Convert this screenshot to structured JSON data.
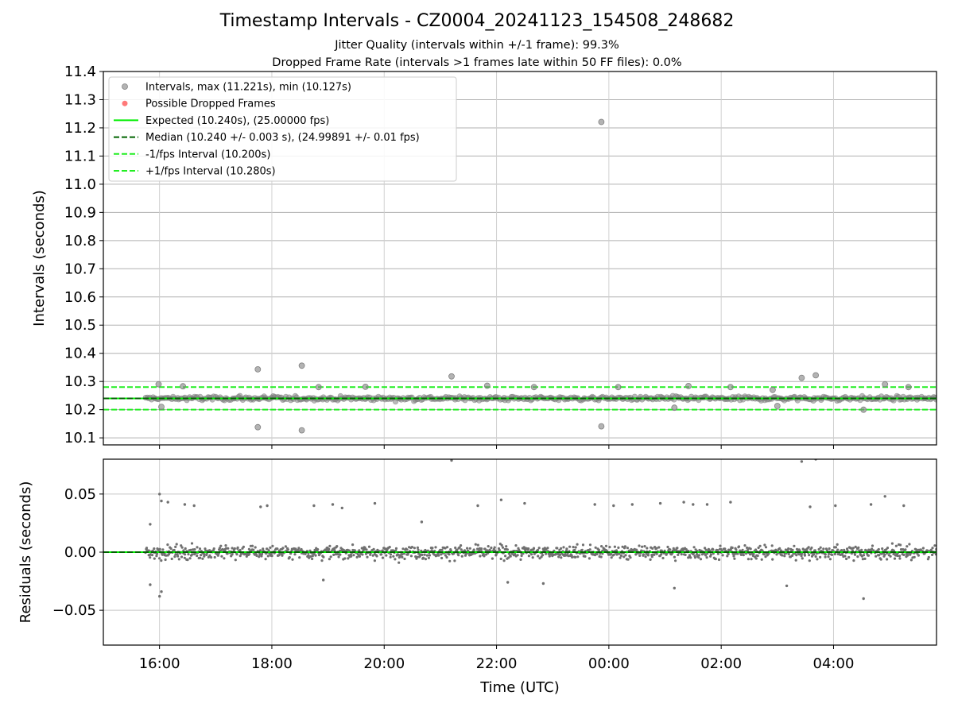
{
  "figure": {
    "title": "Timestamp Intervals - CZ0004_20241123_154508_248682",
    "subtitle_1": "Jitter Quality (intervals within +/-1 frame): 99.3%",
    "subtitle_2": "Dropped Frame Rate (intervals >1 frames late within 50 FF files): 0.0%"
  },
  "colors": {
    "points": "#808080",
    "dropped": "#ff4040",
    "expected": "#00ee00",
    "median": "#006400",
    "fps_band": "#22ee22"
  },
  "chart_data": [
    {
      "type": "scatter",
      "ylabel": "Intervals (seconds)",
      "xlim": [
        "2024-11-23T15:00",
        "2024-11-24T05:50"
      ],
      "ylim": [
        10.075,
        11.4
      ],
      "yticks": [
        "10.1",
        "10.2",
        "10.3",
        "10.4",
        "10.5",
        "10.6",
        "10.7",
        "10.8",
        "10.9",
        "11.0",
        "11.1",
        "11.2",
        "11.3",
        "11.4"
      ],
      "grid": true,
      "legend_position": "top-left",
      "legend": [
        {
          "label": "Intervals, max (11.221s), min (10.127s)",
          "kind": "point"
        },
        {
          "label": "Possible Dropped Frames",
          "kind": "dropped"
        },
        {
          "label": "Expected (10.240s), (25.00000 fps)",
          "kind": "expected"
        },
        {
          "label": "Median (10.240 +/- 0.003 s), (24.99891 +/- 0.01 fps)",
          "kind": "median"
        },
        {
          "label": "-1/fps Interval (10.200s)",
          "kind": "minus"
        },
        {
          "label": "+1/fps Interval (10.280s)",
          "kind": "plus"
        }
      ],
      "reference_lines": {
        "expected": 10.24,
        "median": 10.24,
        "minus_1fps": 10.2,
        "plus_1fps": 10.28
      },
      "dense_band": {
        "x_start": "2024-11-23T15:45",
        "x_end": "2024-11-24T05:50",
        "center": 10.24,
        "spread": 0.012
      },
      "outliers": [
        {
          "x": "2024-11-23T17:45",
          "y": 10.343
        },
        {
          "x": "2024-11-23T17:45",
          "y": 10.138
        },
        {
          "x": "2024-11-23T18:32",
          "y": 10.356
        },
        {
          "x": "2024-11-23T18:32",
          "y": 10.127
        },
        {
          "x": "2024-11-23T21:12",
          "y": 10.318
        },
        {
          "x": "2024-11-23T23:52",
          "y": 11.221
        },
        {
          "x": "2024-11-23T23:52",
          "y": 10.141
        },
        {
          "x": "2024-11-24T03:26",
          "y": 10.313
        },
        {
          "x": "2024-11-24T03:41",
          "y": 10.322
        },
        {
          "x": "2024-11-24T04:32",
          "y": 10.2
        },
        {
          "x": "2024-11-23T15:59",
          "y": 10.29
        },
        {
          "x": "2024-11-23T16:02",
          "y": 10.21
        },
        {
          "x": "2024-11-23T16:25",
          "y": 10.283
        },
        {
          "x": "2024-11-23T18:50",
          "y": 10.28
        },
        {
          "x": "2024-11-23T19:40",
          "y": 10.281
        },
        {
          "x": "2024-11-23T21:50",
          "y": 10.285
        },
        {
          "x": "2024-11-23T22:40",
          "y": 10.28
        },
        {
          "x": "2024-11-24T00:10",
          "y": 10.28
        },
        {
          "x": "2024-11-24T01:10",
          "y": 10.207
        },
        {
          "x": "2024-11-24T01:25",
          "y": 10.284
        },
        {
          "x": "2024-11-24T02:10",
          "y": 10.28
        },
        {
          "x": "2024-11-24T02:55",
          "y": 10.27
        },
        {
          "x": "2024-11-24T03:00",
          "y": 10.213
        },
        {
          "x": "2024-11-24T04:55",
          "y": 10.29
        },
        {
          "x": "2024-11-24T05:20",
          "y": 10.28
        }
      ]
    },
    {
      "type": "scatter",
      "xlabel": "Time (UTC)",
      "ylabel": "Residuals (seconds)",
      "xlim": [
        "2024-11-23T15:00",
        "2024-11-24T05:50"
      ],
      "ylim": [
        -0.08,
        0.08
      ],
      "yticks": [
        "0.05",
        "0.00",
        "−0.05"
      ],
      "xticks": [
        "16:00",
        "18:00",
        "20:00",
        "22:00",
        "00:00",
        "02:00",
        "04:00"
      ],
      "grid": true,
      "reference_lines": {
        "expected": 0.0,
        "median": 0.0
      },
      "dense_band": {
        "x_start": "2024-11-23T15:45",
        "x_end": "2024-11-24T05:50",
        "center": 0.0,
        "spread": 0.008
      },
      "outliers": [
        {
          "x": "2024-11-23T15:50",
          "y": 0.024
        },
        {
          "x": "2024-11-23T15:50",
          "y": -0.028
        },
        {
          "x": "2024-11-23T16:00",
          "y": 0.05
        },
        {
          "x": "2024-11-23T16:00",
          "y": -0.038
        },
        {
          "x": "2024-11-23T16:02",
          "y": 0.044
        },
        {
          "x": "2024-11-23T16:02",
          "y": -0.034
        },
        {
          "x": "2024-11-23T16:09",
          "y": 0.043
        },
        {
          "x": "2024-11-23T16:27",
          "y": 0.041
        },
        {
          "x": "2024-11-23T16:37",
          "y": 0.04
        },
        {
          "x": "2024-11-23T17:48",
          "y": 0.039
        },
        {
          "x": "2024-11-23T17:55",
          "y": 0.04
        },
        {
          "x": "2024-11-23T18:45",
          "y": 0.04
        },
        {
          "x": "2024-11-23T18:55",
          "y": -0.024
        },
        {
          "x": "2024-11-23T19:05",
          "y": 0.041
        },
        {
          "x": "2024-11-23T19:15",
          "y": 0.038
        },
        {
          "x": "2024-11-23T19:50",
          "y": 0.042
        },
        {
          "x": "2024-11-23T20:40",
          "y": 0.026
        },
        {
          "x": "2024-11-23T21:12",
          "y": 0.079
        },
        {
          "x": "2024-11-23T21:40",
          "y": 0.04
        },
        {
          "x": "2024-11-23T22:05",
          "y": 0.045
        },
        {
          "x": "2024-11-23T22:12",
          "y": -0.026
        },
        {
          "x": "2024-11-23T22:30",
          "y": 0.042
        },
        {
          "x": "2024-11-23T22:50",
          "y": -0.027
        },
        {
          "x": "2024-11-23T23:45",
          "y": 0.041
        },
        {
          "x": "2024-11-24T00:05",
          "y": 0.04
        },
        {
          "x": "2024-11-24T00:25",
          "y": 0.041
        },
        {
          "x": "2024-11-24T00:55",
          "y": 0.042
        },
        {
          "x": "2024-11-24T01:10",
          "y": -0.031
        },
        {
          "x": "2024-11-24T01:20",
          "y": 0.043
        },
        {
          "x": "2024-11-24T01:30",
          "y": 0.041
        },
        {
          "x": "2024-11-24T01:45",
          "y": 0.041
        },
        {
          "x": "2024-11-24T02:10",
          "y": 0.043
        },
        {
          "x": "2024-11-24T03:10",
          "y": -0.029
        },
        {
          "x": "2024-11-24T03:26",
          "y": 0.078
        },
        {
          "x": "2024-11-24T03:35",
          "y": 0.039
        },
        {
          "x": "2024-11-24T03:41",
          "y": 0.08
        },
        {
          "x": "2024-11-24T04:02",
          "y": 0.04
        },
        {
          "x": "2024-11-24T04:32",
          "y": -0.04
        },
        {
          "x": "2024-11-24T04:40",
          "y": 0.041
        },
        {
          "x": "2024-11-24T04:55",
          "y": 0.048
        },
        {
          "x": "2024-11-24T05:15",
          "y": 0.04
        }
      ]
    }
  ]
}
